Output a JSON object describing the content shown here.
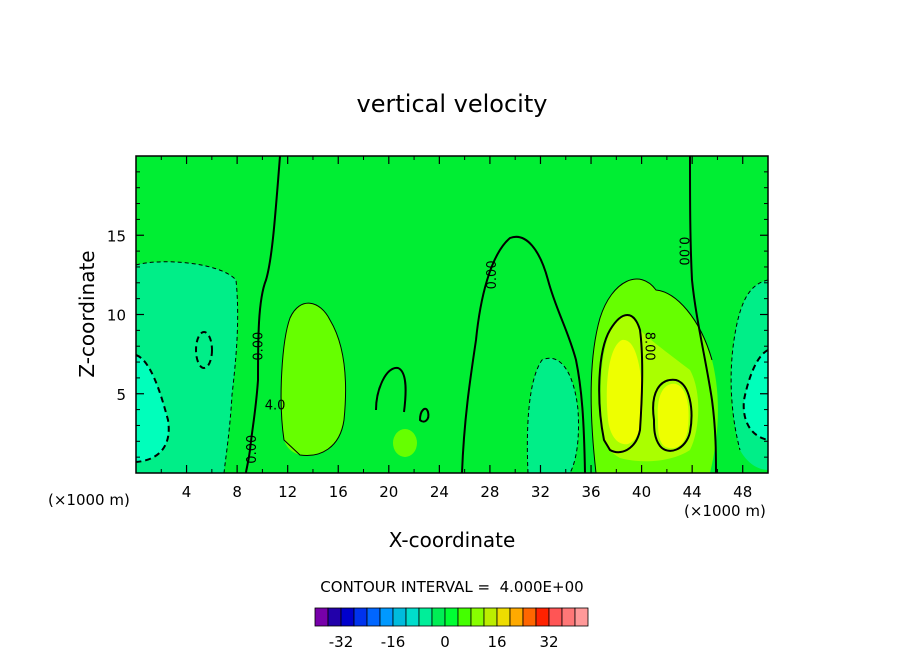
{
  "chart_data": {
    "type": "contour",
    "title": "vertical velocity",
    "xlabel": "X-coordinate",
    "ylabel": "Z-coordinate",
    "x_unit": "(×1000 m)",
    "z_unit": "(×1000 m)",
    "xlim": [
      0,
      50
    ],
    "ylim": [
      0,
      20
    ],
    "x_ticks": [
      4,
      8,
      12,
      16,
      20,
      24,
      28,
      32,
      36,
      40,
      44,
      48
    ],
    "y_ticks": [
      5,
      10,
      15
    ],
    "contour_interval_text": "CONTOUR INTERVAL =  4.000E+00",
    "contour_labels": [
      {
        "text": "0.00",
        "x": 10.0,
        "z": 8.0,
        "rotate": -90
      },
      {
        "text": "0.00",
        "x": 9.5,
        "z": 1.5,
        "rotate": -90
      },
      {
        "text": "0.00",
        "x": 28.5,
        "z": 12.5,
        "rotate": -90
      },
      {
        "text": "0.00",
        "x": 43.0,
        "z": 14.0,
        "rotate": 90
      },
      {
        "text": "8.00",
        "x": 40.3,
        "z": 8.0,
        "rotate": 90
      },
      {
        "text": "4.0",
        "x": 11.0,
        "z": 4.0,
        "rotate": 0
      }
    ],
    "colorbar": {
      "levels": [
        -36,
        -32,
        -28,
        -24,
        -20,
        -16,
        -12,
        -8,
        -4,
        0,
        4,
        8,
        12,
        16,
        20,
        24,
        28,
        32,
        36
      ],
      "colors": [
        "#7700aa",
        "#2200aa",
        "#0000cc",
        "#0033ee",
        "#0066ff",
        "#0099ff",
        "#00bbdd",
        "#00ddcc",
        "#00ee99",
        "#00ee55",
        "#00ff33",
        "#44ff00",
        "#88ff00",
        "#bbee00",
        "#eedd00",
        "#ffaa00",
        "#ff6600",
        "#ff2200",
        "#ff5555",
        "#ff7777",
        "#ff9999"
      ],
      "tick_labels": [
        "-32",
        "-16",
        "0",
        "16",
        "32"
      ],
      "tick_values": [
        -32,
        -16,
        0,
        16,
        32
      ]
    }
  }
}
